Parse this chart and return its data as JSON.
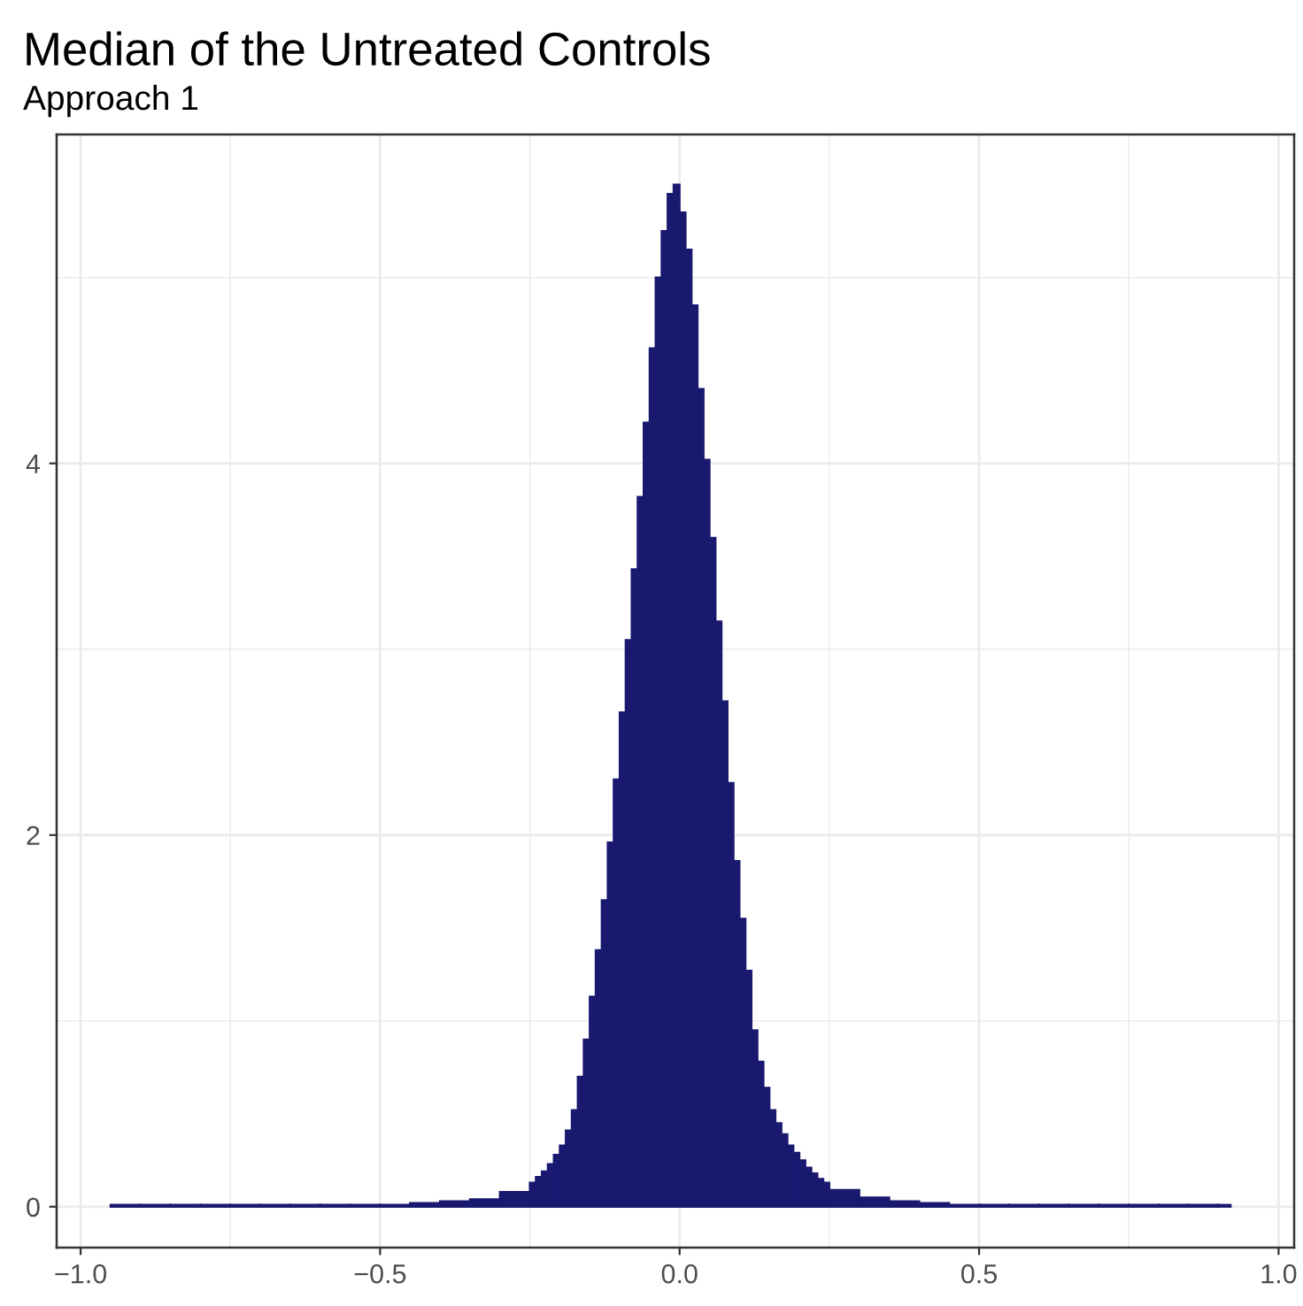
{
  "chart_data": {
    "type": "histogram",
    "title": "Median of the Untreated Controls",
    "subtitle": "Approach 1",
    "bins": [
      -0.95,
      -0.9,
      -0.85,
      -0.8,
      -0.75,
      -0.7,
      -0.65,
      -0.6,
      -0.55,
      -0.5,
      -0.45,
      -0.4,
      -0.35,
      -0.3,
      -0.25,
      -0.24,
      -0.23,
      -0.22,
      -0.21,
      -0.2,
      -0.19,
      -0.18,
      -0.17,
      -0.16,
      -0.15,
      -0.14,
      -0.13,
      -0.12,
      -0.11,
      -0.1,
      -0.09,
      -0.08,
      -0.07,
      -0.06,
      -0.05,
      -0.04,
      -0.03,
      -0.02,
      -0.01,
      0.0,
      0.01,
      0.02,
      0.03,
      0.04,
      0.05,
      0.06,
      0.07,
      0.08,
      0.09,
      0.1,
      0.11,
      0.12,
      0.13,
      0.14,
      0.15,
      0.16,
      0.17,
      0.18,
      0.19,
      0.2,
      0.21,
      0.22,
      0.23,
      0.24,
      0.25,
      0.3,
      0.35,
      0.4,
      0.45,
      0.5,
      0.55,
      0.6,
      0.65,
      0.7,
      0.75,
      0.8,
      0.85,
      0.9,
      0.92
    ],
    "values": [
      0.01,
      0.01,
      0.01,
      0.01,
      0.01,
      0.01,
      0.01,
      0.01,
      0.01,
      0.01,
      0.02,
      0.03,
      0.04,
      0.08,
      0.13,
      0.16,
      0.19,
      0.23,
      0.28,
      0.33,
      0.41,
      0.52,
      0.7,
      0.9,
      1.13,
      1.38,
      1.65,
      1.96,
      2.3,
      2.66,
      3.05,
      3.43,
      3.82,
      4.22,
      4.62,
      5.0,
      5.25,
      5.45,
      5.5,
      5.35,
      5.15,
      4.85,
      4.4,
      4.02,
      3.6,
      3.15,
      2.72,
      2.28,
      1.86,
      1.55,
      1.27,
      0.95,
      0.78,
      0.64,
      0.52,
      0.45,
      0.39,
      0.33,
      0.29,
      0.25,
      0.21,
      0.18,
      0.15,
      0.13,
      0.09,
      0.05,
      0.03,
      0.02,
      0.01,
      0.01,
      0.01,
      0.01,
      0.01,
      0.01,
      0.01,
      0.01,
      0.01,
      0.01
    ],
    "color": "#191970",
    "xlim": [
      -1.04,
      1.026
    ],
    "ylim": [
      -0.22,
      5.77
    ],
    "xticks": [
      {
        "value": -1.0,
        "label": "−1.0"
      },
      {
        "value": -0.5,
        "label": "−0.5"
      },
      {
        "value": 0.0,
        "label": "0.0"
      },
      {
        "value": 0.5,
        "label": "0.5"
      },
      {
        "value": 1.0,
        "label": "1.0"
      }
    ],
    "yticks": [
      0,
      2,
      4
    ],
    "grid": true
  }
}
